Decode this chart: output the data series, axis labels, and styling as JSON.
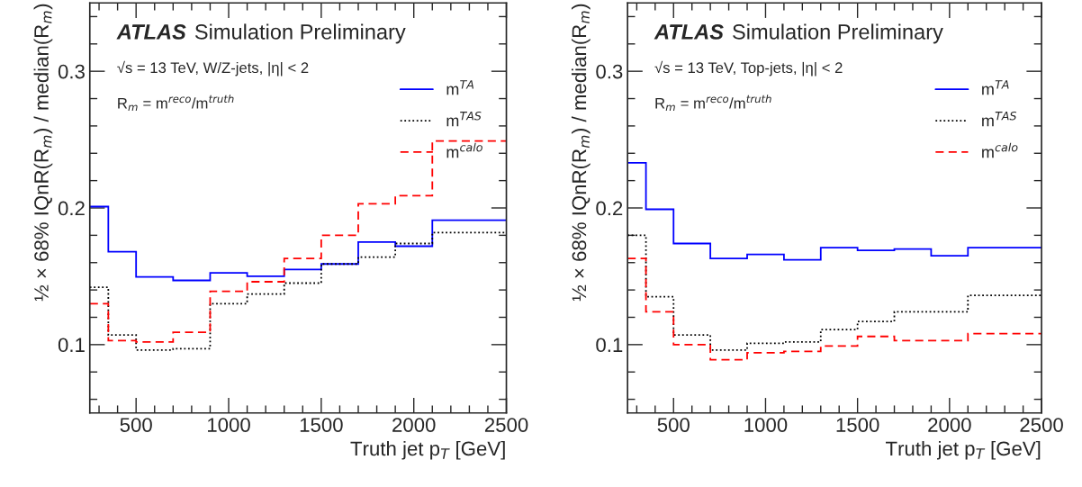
{
  "chart_data": [
    {
      "type": "histogram",
      "xlabel": "Truth jet p$_{T}$ [GeV]",
      "ylabel": "½ × 68% IQnR(R$_{m}$) / median(R$_{m}$)",
      "annotations": [
        "ATLAS",
        "Simulation Preliminary",
        "√s = 13 TeV, W/Z-jets, |η| < 2",
        "R$_{m}$ = m$^{reco}$/m$^{truth}$"
      ],
      "bins": [
        250,
        350,
        500,
        700,
        900,
        1100,
        1300,
        1500,
        1700,
        1900,
        2100,
        2500
      ],
      "series": [
        {
          "name": "m$^{TA}$",
          "color": "#0000ff",
          "line_style": "solid",
          "values": [
            0.201,
            0.168,
            0.1495,
            0.147,
            0.1525,
            0.15,
            0.155,
            0.159,
            0.175,
            0.172,
            0.191
          ]
        },
        {
          "name": "m$^{TAS}$",
          "color": "#000000",
          "line_style": "dotted",
          "values": [
            0.142,
            0.107,
            0.096,
            0.097,
            0.13,
            0.137,
            0.145,
            0.159,
            0.164,
            0.174,
            0.182
          ]
        },
        {
          "name": "m$^{calo}$",
          "color": "#ff0000",
          "line_style": "dashed",
          "values": [
            0.13,
            0.103,
            0.102,
            0.109,
            0.139,
            0.146,
            0.163,
            0.18,
            0.203,
            0.209,
            0.249
          ]
        }
      ],
      "xlim": [
        250,
        2500
      ],
      "xticks": [
        500,
        1000,
        1500,
        2000,
        2500
      ],
      "ylim": [
        0.05,
        0.35
      ],
      "yticks": [
        0.1,
        0.2,
        0.3
      ],
      "grid": false,
      "legend": "top right"
    },
    {
      "type": "histogram",
      "xlabel": "Truth jet p$_{T}$ [GeV]",
      "ylabel": "½ × 68% IQnR(R$_{m}$) / median(R$_{m}$)",
      "annotations": [
        "ATLAS",
        "Simulation Preliminary",
        "√s = 13 TeV, Top-jets, |η| < 2",
        "R$_{m}$ = m$^{reco}$/m$^{truth}$"
      ],
      "bins": [
        250,
        350,
        500,
        700,
        900,
        1100,
        1300,
        1500,
        1700,
        1900,
        2100,
        2500
      ],
      "series": [
        {
          "name": "m$^{TA}$",
          "color": "#0000ff",
          "line_style": "solid",
          "values": [
            0.233,
            0.199,
            0.174,
            0.163,
            0.166,
            0.162,
            0.171,
            0.169,
            0.17,
            0.165,
            0.171
          ]
        },
        {
          "name": "m$^{TAS}$",
          "color": "#000000",
          "line_style": "dotted",
          "values": [
            0.18,
            0.135,
            0.107,
            0.096,
            0.101,
            0.102,
            0.111,
            0.117,
            0.124,
            0.124,
            0.136
          ]
        },
        {
          "name": "m$^{calo}$",
          "color": "#ff0000",
          "line_style": "dashed",
          "values": [
            0.163,
            0.124,
            0.1,
            0.089,
            0.094,
            0.095,
            0.099,
            0.106,
            0.103,
            0.103,
            0.108
          ]
        }
      ],
      "xlim": [
        250,
        2500
      ],
      "xticks": [
        500,
        1000,
        1500,
        2000,
        2500
      ],
      "ylim": [
        0.05,
        0.35
      ],
      "yticks": [
        0.1,
        0.2,
        0.3
      ],
      "grid": false,
      "legend": "top right"
    }
  ]
}
